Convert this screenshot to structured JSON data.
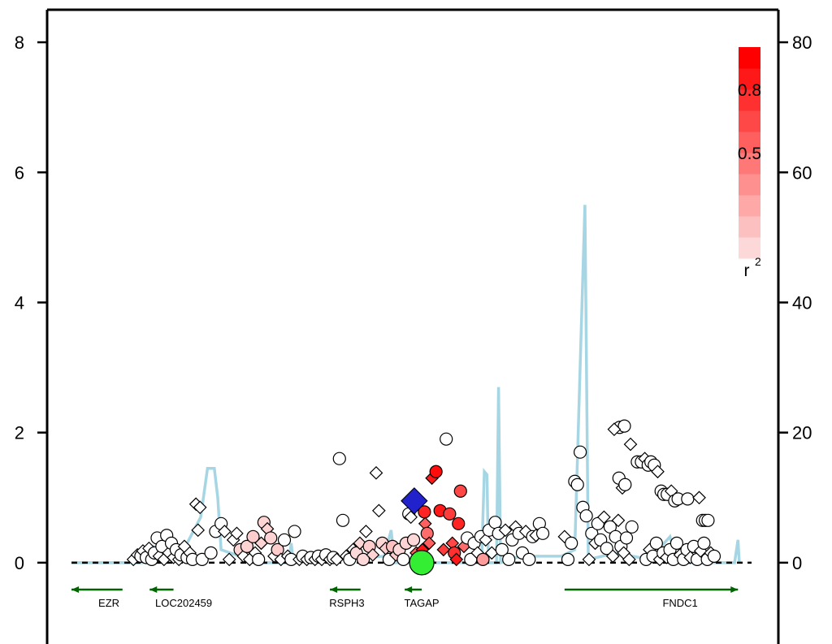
{
  "chart_data": {
    "type": "scatter",
    "title": "",
    "left_axis": {
      "label": "",
      "range": [
        -1.25,
        8.5
      ],
      "ticks": [
        0,
        2,
        4,
        6,
        8
      ]
    },
    "right_axis": {
      "label": "",
      "range": [
        -12.5,
        85
      ],
      "ticks": [
        0,
        20,
        40,
        60,
        80
      ]
    },
    "x_range": [
      0,
      100
    ],
    "legend": {
      "title": "r",
      "title_superscript": "2",
      "placement": "top-right",
      "labels": [
        {
          "text": "0.8",
          "value": 0.8
        },
        {
          "text": "0.5",
          "value": 0.5
        }
      ],
      "range": [
        0,
        1
      ]
    },
    "colors": {
      "ld_low": "#fdf0f0",
      "ld_high": "#ff0000",
      "recombination": "#a6d6e3",
      "gene": "#006400",
      "index_snp": "#33ee33",
      "top_snp": "#2222cc"
    },
    "genes": [
      {
        "name": "EZR",
        "start": 0,
        "end": 7.5,
        "strand": "-",
        "label_x": 5.5
      },
      {
        "name": "LOC202459",
        "start": 11.5,
        "end": 15,
        "strand": "-",
        "label_x": 16.5
      },
      {
        "name": "RSPH3",
        "start": 38,
        "end": 42.5,
        "strand": "-",
        "label_x": 40.5
      },
      {
        "name": "TAGAP",
        "start": 49,
        "end": 51.5,
        "strand": "-",
        "label_x": 51.5
      },
      {
        "name": "FNDC1",
        "start": 72.5,
        "end": 98,
        "strand": "+",
        "label_x": 89.5
      }
    ],
    "recombination": [
      [
        0,
        0
      ],
      [
        10.5,
        0
      ],
      [
        12,
        2.5
      ],
      [
        16,
        1
      ],
      [
        19,
        7
      ],
      [
        20,
        14.5
      ],
      [
        21,
        14.5
      ],
      [
        21.5,
        10
      ],
      [
        22,
        2
      ],
      [
        27.5,
        0
      ],
      [
        32,
        0
      ],
      [
        32.3,
        3
      ],
      [
        32.6,
        0
      ],
      [
        46,
        1
      ],
      [
        47,
        5
      ],
      [
        47.5,
        0
      ],
      [
        60.3,
        0
      ],
      [
        60.7,
        14
      ],
      [
        61.1,
        13.5
      ],
      [
        61.3,
        0
      ],
      [
        62.5,
        0
      ],
      [
        62.8,
        27
      ],
      [
        63.1,
        0
      ],
      [
        66,
        1
      ],
      [
        72,
        1
      ],
      [
        74,
        2
      ],
      [
        75.5,
        55
      ],
      [
        76,
        0.5
      ],
      [
        80,
        1.5
      ],
      [
        85,
        0.5
      ],
      [
        88,
        4
      ],
      [
        89,
        0
      ],
      [
        97.5,
        0
      ],
      [
        98,
        3.5
      ],
      [
        98.2,
        0
      ]
    ],
    "index_snp": {
      "x": 51.5,
      "y": 0,
      "r2": 1
    },
    "top_snp": {
      "x": 50.4,
      "y": 0.95,
      "r2": 1
    },
    "points": [
      [
        9.1,
        0.05,
        "d",
        0
      ],
      [
        9.7,
        0.12,
        "d",
        0
      ],
      [
        10.2,
        0.1,
        "c",
        0
      ],
      [
        10.5,
        0.18,
        "d",
        0
      ],
      [
        11,
        0.08,
        "c",
        0
      ],
      [
        11.4,
        0.22,
        "d",
        0
      ],
      [
        11.8,
        0.05,
        "c",
        0
      ],
      [
        12.2,
        0.15,
        "c",
        0
      ],
      [
        12.6,
        0.38,
        "c",
        0
      ],
      [
        12.9,
        0.1,
        "d",
        0
      ],
      [
        13.3,
        0.25,
        "c",
        0
      ],
      [
        13.6,
        0.05,
        "d",
        0
      ],
      [
        14,
        0.42,
        "c",
        0
      ],
      [
        14.3,
        0.15,
        "d",
        0
      ],
      [
        14.7,
        0.3,
        "c",
        0
      ],
      [
        15,
        0.08,
        "d",
        0
      ],
      [
        15.4,
        0.2,
        "c",
        0
      ],
      [
        15.8,
        0.05,
        "d",
        0
      ],
      [
        16.1,
        0.12,
        "c",
        0
      ],
      [
        16.6,
        0.25,
        "d",
        0
      ],
      [
        17,
        0.08,
        "c",
        0
      ],
      [
        17.4,
        0.15,
        "d",
        0
      ],
      [
        17.8,
        0.05,
        "c",
        0
      ],
      [
        18.3,
        0.9,
        "d",
        0
      ],
      [
        18.9,
        0.85,
        "d",
        0
      ],
      [
        18.6,
        0.5,
        "d",
        0
      ],
      [
        19.2,
        0.05,
        "c",
        0
      ],
      [
        20.5,
        0.15,
        "c",
        0
      ],
      [
        21.2,
        0.48,
        "c",
        0
      ],
      [
        22,
        0.6,
        "c",
        0
      ],
      [
        22.5,
        0.48,
        "d",
        0
      ],
      [
        23.2,
        0.05,
        "d",
        0
      ],
      [
        23.8,
        0.35,
        "d",
        0
      ],
      [
        24.3,
        0.45,
        "d",
        0
      ],
      [
        24.8,
        0.2,
        "c",
        0.12
      ],
      [
        25.3,
        0.1,
        "d",
        0
      ],
      [
        25.8,
        0.25,
        "c",
        0.12
      ],
      [
        26.2,
        0.05,
        "d",
        0
      ],
      [
        26.7,
        0.4,
        "c",
        0.15
      ],
      [
        27,
        0.15,
        "d",
        0
      ],
      [
        27.5,
        0.05,
        "c",
        0
      ],
      [
        27.9,
        0.3,
        "d",
        0.12
      ],
      [
        28.3,
        0.62,
        "c",
        0.12
      ],
      [
        28.8,
        0.52,
        "d",
        0.12
      ],
      [
        29.3,
        0.38,
        "c",
        0.12
      ],
      [
        29.8,
        0.1,
        "d",
        0
      ],
      [
        30.3,
        0.2,
        "c",
        0.15
      ],
      [
        30.8,
        0.05,
        "d",
        0
      ],
      [
        31.3,
        0.35,
        "c",
        0
      ],
      [
        31.8,
        0.1,
        "d",
        0
      ],
      [
        32.3,
        0.05,
        "c",
        0
      ],
      [
        32.8,
        0.48,
        "c",
        0
      ],
      [
        33.5,
        0.05,
        "d",
        0
      ],
      [
        34,
        0.1,
        "c",
        0
      ],
      [
        34.6,
        0.05,
        "d",
        0
      ],
      [
        35.2,
        0.08,
        "c",
        0
      ],
      [
        35.8,
        0.05,
        "d",
        0
      ],
      [
        36.3,
        0.1,
        "c",
        0
      ],
      [
        36.8,
        0.05,
        "d",
        0
      ],
      [
        37.4,
        0.12,
        "c",
        0
      ],
      [
        38,
        0.05,
        "d",
        0
      ],
      [
        38.5,
        0.08,
        "c",
        0
      ],
      [
        39,
        0.05,
        "d",
        0
      ],
      [
        39.4,
        1.6,
        "c",
        0
      ],
      [
        39.9,
        0.65,
        "c",
        0
      ],
      [
        40.4,
        0.1,
        "d",
        0
      ],
      [
        40.9,
        0.05,
        "c",
        0
      ],
      [
        41.4,
        0.2,
        "d",
        0
      ],
      [
        41.9,
        0.15,
        "c",
        0.1
      ],
      [
        42.4,
        0.3,
        "d",
        0.1
      ],
      [
        42.9,
        0.05,
        "c",
        0.1
      ],
      [
        43.3,
        0.48,
        "d",
        0
      ],
      [
        43.8,
        0.25,
        "c",
        0.15
      ],
      [
        44.3,
        0.12,
        "d",
        0.12
      ],
      [
        44.8,
        1.38,
        "d",
        0
      ],
      [
        45.2,
        0.8,
        "d",
        0
      ],
      [
        45.7,
        0.3,
        "c",
        0.1
      ],
      [
        46.2,
        0.22,
        "d",
        0.15
      ],
      [
        46.7,
        0.05,
        "c",
        0
      ],
      [
        47.2,
        0.25,
        "c",
        0.2
      ],
      [
        47.7,
        0.12,
        "d",
        0.15
      ],
      [
        48.2,
        0.2,
        "c",
        0.1
      ],
      [
        48.8,
        0.05,
        "c",
        0
      ],
      [
        49.2,
        0.3,
        "c",
        0.12
      ],
      [
        49.6,
        0.75,
        "c",
        0
      ],
      [
        49.9,
        0.7,
        "d",
        0
      ],
      [
        50.3,
        0.35,
        "c",
        0.1
      ],
      [
        50.7,
        0.15,
        "d",
        0.6
      ],
      [
        51,
        0.05,
        "c",
        0.35
      ],
      [
        51.6,
        0.2,
        "d",
        0.9
      ],
      [
        51.9,
        0.78,
        "c",
        0.85
      ],
      [
        52,
        0.6,
        "d",
        0.6
      ],
      [
        52.3,
        0.45,
        "c",
        0.55
      ],
      [
        52.6,
        0.3,
        "d",
        0.6
      ],
      [
        53,
        1.3,
        "d",
        0.9
      ],
      [
        53.6,
        1.4,
        "c",
        0.95
      ],
      [
        54.2,
        0.8,
        "c",
        0.9
      ],
      [
        54.7,
        0.2,
        "d",
        0.75
      ],
      [
        55.1,
        1.9,
        "c",
        0
      ],
      [
        55.6,
        0.75,
        "c",
        0.75
      ],
      [
        56,
        0.3,
        "d",
        0.7
      ],
      [
        56.3,
        0.15,
        "c",
        0.8
      ],
      [
        56.6,
        0.05,
        "d",
        0.9
      ],
      [
        56.9,
        0.6,
        "c",
        0.85
      ],
      [
        57.2,
        1.1,
        "c",
        0.7
      ],
      [
        57.7,
        0.25,
        "d",
        0.55
      ],
      [
        58.2,
        0.38,
        "c",
        0
      ],
      [
        58.7,
        0.05,
        "c",
        0
      ],
      [
        59.2,
        0.3,
        "c",
        0
      ],
      [
        59.7,
        0.15,
        "d",
        0
      ],
      [
        60.2,
        0.4,
        "c",
        0
      ],
      [
        60.5,
        0.05,
        "c",
        0.35
      ],
      [
        60.9,
        0.35,
        "d",
        0
      ],
      [
        61.4,
        0.5,
        "c",
        0
      ],
      [
        61.8,
        0.15,
        "d",
        0
      ],
      [
        62.3,
        0.62,
        "c",
        0
      ],
      [
        62.8,
        0.45,
        "c",
        0
      ],
      [
        63.3,
        0.2,
        "c",
        0
      ],
      [
        63.8,
        0.5,
        "d",
        0
      ],
      [
        64.3,
        0.05,
        "c",
        0
      ],
      [
        64.8,
        0.35,
        "c",
        0
      ],
      [
        65.3,
        0.55,
        "d",
        0
      ],
      [
        65.8,
        0.45,
        "c",
        0
      ],
      [
        66.3,
        0.15,
        "c",
        0
      ],
      [
        66.8,
        0.48,
        "d",
        0
      ],
      [
        67.3,
        0.05,
        "c",
        0
      ],
      [
        67.8,
        0.4,
        "c",
        0
      ],
      [
        68.3,
        0.42,
        "d",
        0
      ],
      [
        68.8,
        0.6,
        "c",
        0
      ],
      [
        69.3,
        0.45,
        "c",
        0
      ],
      [
        72.5,
        0.4,
        "d",
        0
      ],
      [
        73,
        0.05,
        "c",
        0
      ],
      [
        73.5,
        0.3,
        "c",
        0
      ],
      [
        74,
        1.25,
        "c",
        0
      ],
      [
        74.4,
        1.2,
        "c",
        0
      ],
      [
        74.8,
        1.7,
        "c",
        0
      ],
      [
        75.2,
        0.85,
        "c",
        0
      ],
      [
        75.7,
        0.72,
        "c",
        0
      ],
      [
        76.1,
        0.05,
        "d",
        0
      ],
      [
        76.5,
        0.45,
        "c",
        0
      ],
      [
        77,
        0.3,
        "d",
        0
      ],
      [
        77.4,
        0.6,
        "c",
        0
      ],
      [
        77.8,
        0.35,
        "c",
        0
      ],
      [
        78.3,
        0.7,
        "d",
        0
      ],
      [
        78.7,
        0.22,
        "c",
        0
      ],
      [
        79.2,
        0.55,
        "c",
        0
      ],
      [
        79.6,
        0.1,
        "d",
        0
      ],
      [
        80,
        0.4,
        "c",
        0
      ],
      [
        80.4,
        0.65,
        "d",
        0
      ],
      [
        80.8,
        0.25,
        "c",
        0
      ],
      [
        81.2,
        0.15,
        "d",
        0
      ],
      [
        81.6,
        0.38,
        "c",
        0
      ],
      [
        82,
        0.05,
        "d",
        0
      ],
      [
        82.4,
        0.55,
        "c",
        0
      ],
      [
        80.5,
        1.3,
        "c",
        0
      ],
      [
        81,
        1.15,
        "d",
        0
      ],
      [
        81.4,
        1.2,
        "c",
        0
      ],
      [
        80.6,
        2.08,
        "c",
        0
      ],
      [
        81.3,
        2.1,
        "c",
        0
      ],
      [
        79.8,
        2.05,
        "d",
        0
      ],
      [
        82.2,
        1.82,
        "d",
        0
      ],
      [
        83.2,
        1.55,
        "c",
        0
      ],
      [
        83.8,
        1.55,
        "c",
        0
      ],
      [
        84.3,
        1.6,
        "d",
        0
      ],
      [
        84.8,
        1.5,
        "c",
        0
      ],
      [
        85.2,
        1.55,
        "c",
        0
      ],
      [
        85.7,
        1.5,
        "c",
        0
      ],
      [
        86.2,
        1.4,
        "d",
        0
      ],
      [
        86.7,
        1.1,
        "c",
        0
      ],
      [
        87.1,
        1.05,
        "c",
        0
      ],
      [
        87.6,
        1.05,
        "c",
        0
      ],
      [
        88.2,
        1.1,
        "d",
        0
      ],
      [
        88.7,
        0.95,
        "c",
        0
      ],
      [
        89.2,
        0.98,
        "c",
        0
      ],
      [
        90.6,
        0.98,
        "c",
        0
      ],
      [
        92.3,
        1.0,
        "d",
        0
      ],
      [
        92.8,
        0.65,
        "c",
        0
      ],
      [
        93.2,
        0.65,
        "c",
        0
      ],
      [
        93.6,
        0.65,
        "c",
        0
      ],
      [
        84.5,
        0.05,
        "c",
        0
      ],
      [
        85,
        0.2,
        "d",
        0
      ],
      [
        85.5,
        0.1,
        "c",
        0
      ],
      [
        86,
        0.3,
        "c",
        0
      ],
      [
        86.5,
        0.05,
        "d",
        0
      ],
      [
        87,
        0.15,
        "c",
        0
      ],
      [
        87.5,
        0.08,
        "d",
        0
      ],
      [
        88,
        0.2,
        "c",
        0
      ],
      [
        88.5,
        0.05,
        "c",
        0
      ],
      [
        89,
        0.3,
        "c",
        0
      ],
      [
        89.5,
        0.12,
        "d",
        0
      ],
      [
        90,
        0.05,
        "c",
        0
      ],
      [
        90.5,
        0.2,
        "c",
        0
      ],
      [
        91,
        0.08,
        "d",
        0
      ],
      [
        91.5,
        0.25,
        "c",
        0
      ],
      [
        92,
        0.05,
        "c",
        0
      ],
      [
        92.5,
        0.18,
        "d",
        0
      ],
      [
        93,
        0.3,
        "c",
        0
      ],
      [
        93.5,
        0.05,
        "c",
        0
      ],
      [
        94,
        0.15,
        "d",
        0
      ],
      [
        94.5,
        0.1,
        "c",
        0
      ]
    ]
  }
}
